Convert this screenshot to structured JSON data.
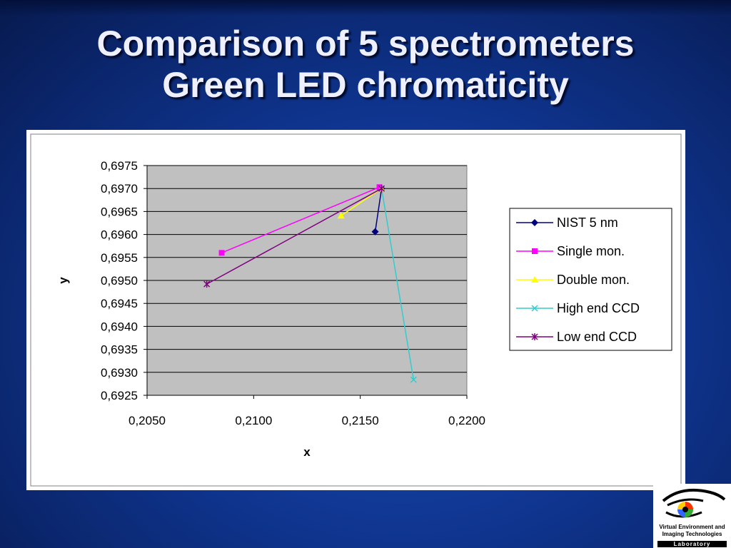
{
  "slide": {
    "title_line1": "Comparison of 5 spectrometers",
    "title_line2": "Green LED chromaticity"
  },
  "logo": {
    "line1": "Virtual Environment and",
    "line2": "Imaging Technologies",
    "line3": "Laboratory"
  },
  "chart_data": {
    "type": "line",
    "xlabel": "x",
    "ylabel": "y",
    "xlim": [
      0.205,
      0.22
    ],
    "ylim": [
      0.6925,
      0.6975
    ],
    "xticks": [
      "0,2050",
      "0,2100",
      "0,2150",
      "0,2200"
    ],
    "yticks": [
      "0,6925",
      "0,6930",
      "0,6935",
      "0,6940",
      "0,6945",
      "0,6950",
      "0,6955",
      "0,6960",
      "0,6965",
      "0,6970",
      "0,6975"
    ],
    "grid": "horizontal",
    "plot_background": "#c0c0c0",
    "legend_position": "right",
    "series": [
      {
        "name": "NIST 5 nm",
        "color": "#000080",
        "marker": "diamond",
        "points": [
          [
            0.2157,
            0.69606
          ],
          [
            0.216,
            0.697
          ]
        ]
      },
      {
        "name": "Single mon.",
        "color": "#ff00ff",
        "marker": "square",
        "points": [
          [
            0.2085,
            0.6956
          ],
          [
            0.2159,
            0.69703
          ]
        ]
      },
      {
        "name": "Double mon.",
        "color": "#ffff00",
        "marker": "triangle",
        "points": [
          [
            0.2141,
            0.69641
          ],
          [
            0.216,
            0.697
          ]
        ]
      },
      {
        "name": "High end CCD",
        "color": "#33cccc",
        "marker": "x",
        "points": [
          [
            0.216,
            0.697
          ],
          [
            0.2175,
            0.69284
          ]
        ]
      },
      {
        "name": "Low end CCD",
        "color": "#800080",
        "marker": "star",
        "points": [
          [
            0.2078,
            0.69492
          ],
          [
            0.216,
            0.697
          ]
        ]
      }
    ]
  }
}
